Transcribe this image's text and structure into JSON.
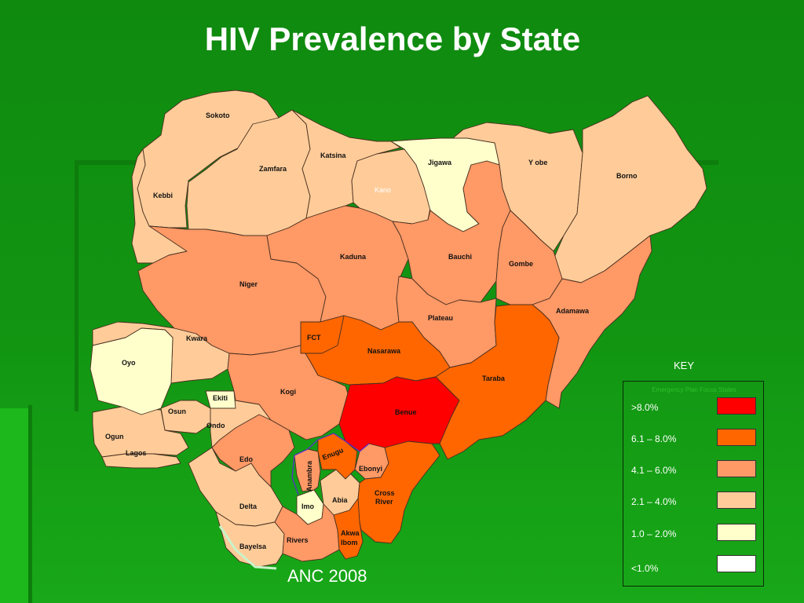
{
  "title": "HIV Prevalence by State",
  "caption": "ANC 2008",
  "key": {
    "title": "KEY",
    "subtitle": "Emergency Plan Focus States",
    "items": [
      {
        "label": ">8.0%",
        "color": "#ff0000"
      },
      {
        "label": "6.1 – 8.0%",
        "color": "#ff6600"
      },
      {
        "label": "4.1 – 6.0%",
        "color": "#ff9966"
      },
      {
        "label": "2.1 – 4.0%",
        "color": "#ffcc99"
      },
      {
        "label": "1.0 – 2.0%",
        "color": "#ffffcc"
      },
      {
        "label": "<1.0%",
        "color": "#ffffff"
      }
    ]
  },
  "states": {
    "sokoto": "Sokoto",
    "zamfara": "Zamfara",
    "katsina": "Katsina",
    "kano": "Kano",
    "jigawa": "Jigawa",
    "yobe": "Y obe",
    "borno": "Borno",
    "kebbi": "Kebbi",
    "kaduna": "Kaduna",
    "bauchi": "Bauchi",
    "gombe": "Gombe",
    "niger": "Niger",
    "adamawa": "Adamawa",
    "plateau": "Plateau",
    "fct": "FCT",
    "kwara": "Kwara",
    "nasarawa": "Nasarawa",
    "oyo": "Oyo",
    "taraba": "Taraba",
    "kogi": "Kogi",
    "ekiti": "Ekiti",
    "osun": "Osun",
    "benue": "Benue",
    "ondo": "Ondo",
    "ogun": "Ogun",
    "enugu": "Enugu",
    "lagos": "Lagos",
    "edo": "Edo",
    "ebonyi": "Ebonyi",
    "anambra": "Anambra",
    "cross_river_1": "Cross",
    "cross_river_2": "River",
    "delta": "Delta",
    "abia": "Abia",
    "imo": "Imo",
    "akwa_ibom_1": "Akwa",
    "akwa_ibom_2": "Ibom",
    "rivers": "Rivers",
    "bayelsa": "Bayelsa"
  }
}
